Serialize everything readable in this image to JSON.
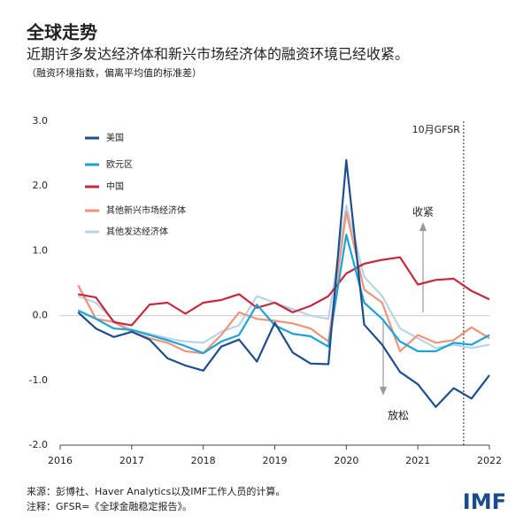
{
  "header": {
    "title": "全球走势",
    "subtitle": "近期许多发达经济体和新兴市场经济体的融资环境已经收紧。",
    "note": "（融资环境指数，偏离平均值的标准差）"
  },
  "footer": {
    "source": "来源：彭博社、Haver Analytics以及IMF工作人员的计算。",
    "notes": "注释：GFSR=《全球金融稳定报告》。",
    "logo": "IMF"
  },
  "chart_data": {
    "type": "line",
    "x": [
      2016.25,
      2016.5,
      2016.75,
      2017.0,
      2017.25,
      2017.5,
      2017.75,
      2018.0,
      2018.25,
      2018.5,
      2018.75,
      2019.0,
      2019.25,
      2019.5,
      2019.75,
      2020.0,
      2020.25,
      2020.5,
      2020.75,
      2021.0,
      2021.25,
      2021.5,
      2021.75,
      2022.0
    ],
    "series": [
      {
        "name": "美国",
        "color": "#1f4e8c",
        "values": [
          0.05,
          -0.2,
          -0.33,
          -0.25,
          -0.37,
          -0.66,
          -0.77,
          -0.85,
          -0.48,
          -0.37,
          -0.71,
          -0.11,
          -0.57,
          -0.74,
          -0.75,
          2.4,
          -0.14,
          -0.45,
          -0.87,
          -1.06,
          -1.41,
          -1.12,
          -1.28,
          -0.92
        ]
      },
      {
        "name": "欧元区",
        "color": "#1ca3d8",
        "values": [
          0.08,
          -0.05,
          -0.2,
          -0.22,
          -0.3,
          -0.38,
          -0.47,
          -0.58,
          -0.4,
          -0.3,
          0.17,
          -0.15,
          -0.28,
          -0.32,
          -0.48,
          1.25,
          0.2,
          -0.05,
          -0.4,
          -0.55,
          -0.55,
          -0.42,
          -0.45,
          -0.3
        ]
      },
      {
        "name": "中国",
        "color": "#c8283c",
        "values": [
          0.33,
          0.28,
          -0.1,
          -0.15,
          0.17,
          0.2,
          0.03,
          0.2,
          0.24,
          0.33,
          0.12,
          0.2,
          0.05,
          0.15,
          0.3,
          0.65,
          0.8,
          0.86,
          0.9,
          0.48,
          0.55,
          0.57,
          0.38,
          0.25
        ]
      },
      {
        "name": "其他新兴市场经济体",
        "color": "#f0937b",
        "values": [
          0.47,
          -0.05,
          -0.1,
          -0.25,
          -0.35,
          -0.42,
          -0.55,
          -0.58,
          -0.3,
          0.05,
          -0.05,
          -0.08,
          -0.12,
          -0.2,
          -0.4,
          1.6,
          0.4,
          0.2,
          -0.55,
          -0.3,
          -0.42,
          -0.38,
          -0.18,
          -0.35
        ]
      },
      {
        "name": "其他发达经济体",
        "color": "#b8d4e8",
        "values": [
          0.3,
          0.2,
          -0.08,
          -0.22,
          -0.28,
          -0.35,
          -0.4,
          -0.42,
          -0.25,
          -0.15,
          0.3,
          0.2,
          0.1,
          0.0,
          -0.05,
          1.7,
          0.6,
          0.3,
          -0.2,
          -0.35,
          -0.5,
          -0.45,
          -0.5,
          -0.45
        ]
      }
    ],
    "xlim": [
      2016,
      2022
    ],
    "xticks": [
      2016,
      2017,
      2018,
      2019,
      2020,
      2021,
      2022
    ],
    "ylim": [
      -2,
      3
    ],
    "yticks": [
      {
        "value": 3,
        "label": "3.0"
      },
      {
        "value": 2,
        "label": "2.0"
      },
      {
        "value": 1,
        "label": "1.0"
      },
      {
        "value": 0,
        "label": "0.0"
      },
      {
        "value": -1,
        "label": "-1.0"
      },
      {
        "value": -2,
        "label": "-2.0"
      }
    ],
    "zero_line": true,
    "vline": {
      "x": 2021.64,
      "label": "10月GFSR"
    },
    "annotations": {
      "up": "收紧",
      "down": "放松"
    }
  }
}
